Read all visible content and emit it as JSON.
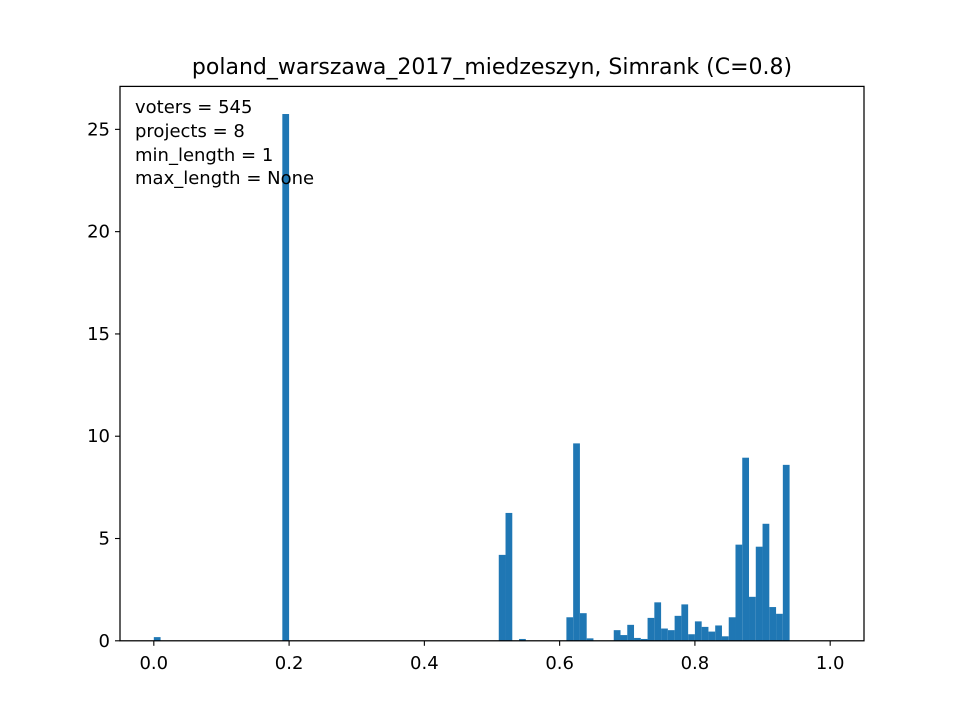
{
  "chart_data": {
    "type": "bar",
    "title": "poland_warszawa_2017_miedzeszyn, Simrank (C=0.8)",
    "xlabel": "",
    "ylabel": "",
    "xlim": [
      -0.05,
      1.05
    ],
    "ylim": [
      0,
      27.1
    ],
    "grid": false,
    "bar_color": "#1f77b4",
    "x_ticks": [
      {
        "value": 0.0,
        "label": "0.0"
      },
      {
        "value": 0.2,
        "label": "0.2"
      },
      {
        "value": 0.4,
        "label": "0.4"
      },
      {
        "value": 0.6,
        "label": "0.6"
      },
      {
        "value": 0.8,
        "label": "0.8"
      },
      {
        "value": 1.0,
        "label": "1.0"
      }
    ],
    "y_ticks": [
      {
        "value": 0,
        "label": "0"
      },
      {
        "value": 5,
        "label": "5"
      },
      {
        "value": 10,
        "label": "10"
      },
      {
        "value": 15,
        "label": "15"
      },
      {
        "value": 20,
        "label": "20"
      },
      {
        "value": 25,
        "label": "25"
      }
    ],
    "annotations": [
      "voters = 545",
      "projects = 8",
      "min_length = 1",
      "max_length = None"
    ],
    "bin_width": 0.01,
    "bins": [
      {
        "x": 0.0,
        "height": 0.18
      },
      {
        "x": 0.19,
        "height": 25.75
      },
      {
        "x": 0.51,
        "height": 4.2
      },
      {
        "x": 0.52,
        "height": 6.25
      },
      {
        "x": 0.54,
        "height": 0.09
      },
      {
        "x": 0.61,
        "height": 1.15
      },
      {
        "x": 0.62,
        "height": 9.65
      },
      {
        "x": 0.63,
        "height": 1.35
      },
      {
        "x": 0.64,
        "height": 0.12
      },
      {
        "x": 0.68,
        "height": 0.52
      },
      {
        "x": 0.69,
        "height": 0.28
      },
      {
        "x": 0.7,
        "height": 0.78
      },
      {
        "x": 0.71,
        "height": 0.14
      },
      {
        "x": 0.72,
        "height": 0.09
      },
      {
        "x": 0.73,
        "height": 1.12
      },
      {
        "x": 0.74,
        "height": 1.88
      },
      {
        "x": 0.75,
        "height": 0.6
      },
      {
        "x": 0.76,
        "height": 0.52
      },
      {
        "x": 0.77,
        "height": 1.22
      },
      {
        "x": 0.78,
        "height": 1.78
      },
      {
        "x": 0.79,
        "height": 0.32
      },
      {
        "x": 0.8,
        "height": 0.95
      },
      {
        "x": 0.81,
        "height": 0.68
      },
      {
        "x": 0.82,
        "height": 0.45
      },
      {
        "x": 0.83,
        "height": 0.75
      },
      {
        "x": 0.84,
        "height": 0.22
      },
      {
        "x": 0.85,
        "height": 1.15
      },
      {
        "x": 0.86,
        "height": 4.7
      },
      {
        "x": 0.87,
        "height": 8.95
      },
      {
        "x": 0.88,
        "height": 2.15
      },
      {
        "x": 0.89,
        "height": 4.6
      },
      {
        "x": 0.9,
        "height": 5.72
      },
      {
        "x": 0.91,
        "height": 1.65
      },
      {
        "x": 0.92,
        "height": 1.32
      },
      {
        "x": 0.93,
        "height": 8.6
      }
    ]
  }
}
